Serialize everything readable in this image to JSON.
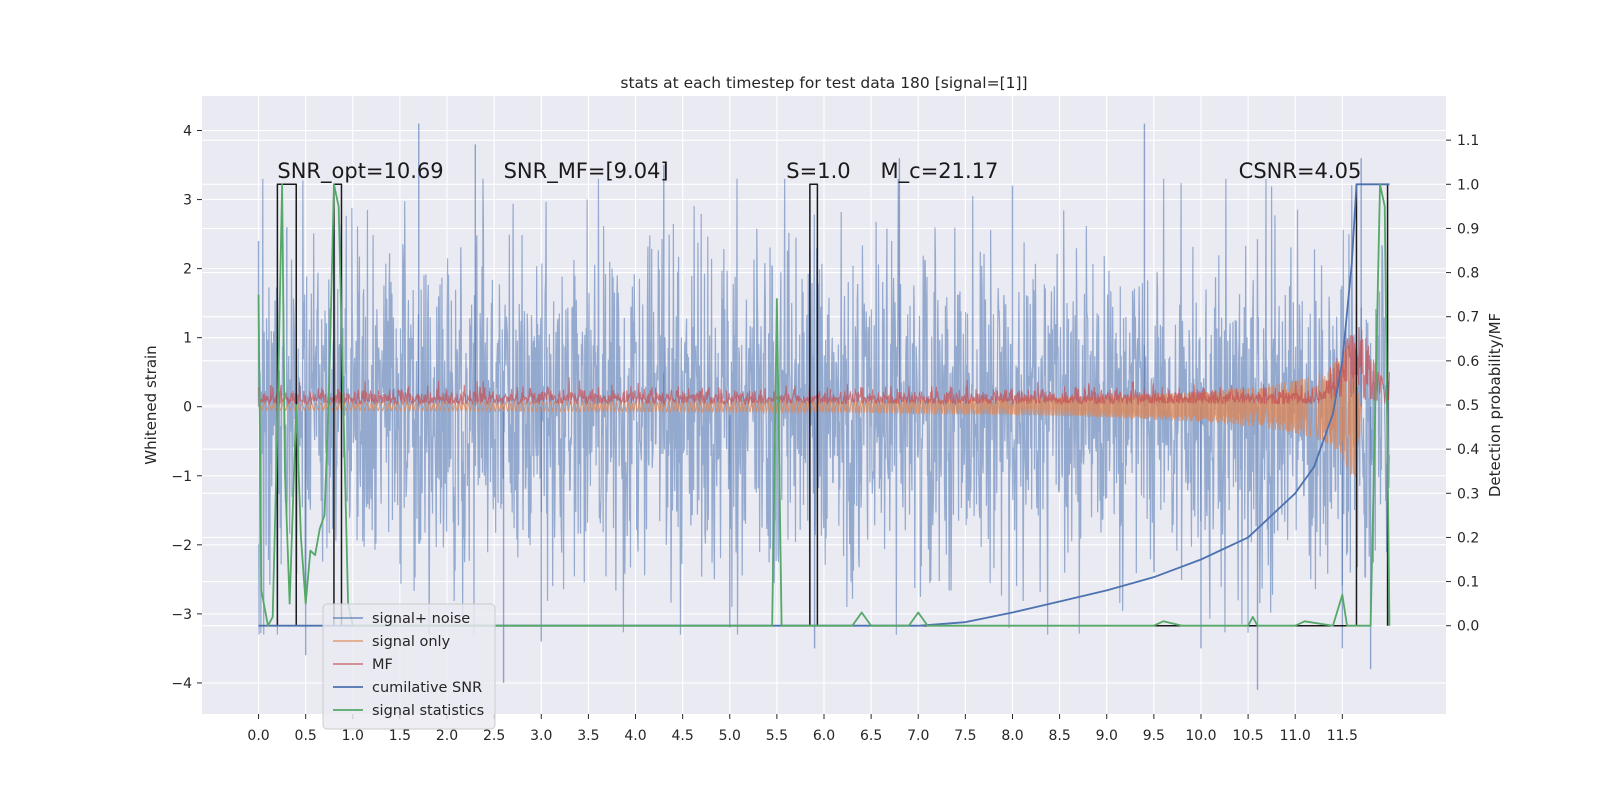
{
  "chart_data": {
    "type": "line",
    "title": "stats at each timestep for test data 180 [signal=[1]]",
    "xlabel": "",
    "ylabel": "Whitened strain",
    "ylabel_right": "Detection probability/MF",
    "xlim": [
      -0.6,
      12.6
    ],
    "ylim": [
      -4.45,
      4.5
    ],
    "ylim_right": [
      -0.2,
      1.2
    ],
    "x_ticks": [
      0.0,
      0.5,
      1.0,
      1.5,
      2.0,
      2.5,
      3.0,
      3.5,
      4.0,
      4.5,
      5.0,
      5.5,
      6.0,
      6.5,
      7.0,
      7.5,
      8.0,
      8.5,
      9.0,
      9.5,
      10.0,
      10.5,
      11.0,
      11.5
    ],
    "x_tick_labels": [
      "0.0",
      "0.5",
      "1.0",
      "1.5",
      "2.0",
      "2.5",
      "3.0",
      "3.5",
      "4.0",
      "4.5",
      "5.0",
      "5.5",
      "6.0",
      "6.5",
      "7.0",
      "7.5",
      "8.0",
      "8.5",
      "9.0",
      "9.5",
      "10.0",
      "10.5",
      "11.0",
      "11.5"
    ],
    "y_ticks": [
      -4,
      -3,
      -2,
      -1,
      0,
      1,
      2,
      3,
      4
    ],
    "y_tick_labels": [
      "−4",
      "−3",
      "−2",
      "−1",
      "0",
      "1",
      "2",
      "3",
      "4"
    ],
    "y_right_ticks": [
      0.0,
      0.1,
      0.2,
      0.3,
      0.4,
      0.5,
      0.6,
      0.7,
      0.8,
      0.9,
      1.0,
      1.1
    ],
    "y_right_tick_labels": [
      "0.0",
      "0.1",
      "0.2",
      "0.3",
      "0.4",
      "0.5",
      "0.6",
      "0.7",
      "0.8",
      "0.9",
      "1.0",
      "1.1"
    ],
    "grid": true,
    "legend_position": "bottom-left",
    "annotations": [
      {
        "text": "SNR_opt=10.69",
        "x": 0.2,
        "y": 3.2
      },
      {
        "text": "SNR_MF=[9.04]",
        "x": 2.6,
        "y": 3.2
      },
      {
        "text": "S=1.0",
        "x": 5.6,
        "y": 3.2
      },
      {
        "text": "M_c=21.17",
        "x": 6.6,
        "y": 3.2
      },
      {
        "text": "CSNR=4.05",
        "x": 10.4,
        "y": 3.2
      }
    ],
    "series": [
      {
        "name": "signal+ noise",
        "axis": "left",
        "color": "#4c72b0",
        "style": "noise band",
        "x_range": [
          0.0,
          12.0
        ],
        "typical_envelope": [
          -2.0,
          2.0
        ],
        "peaks": [
          [
            0.0,
            2.4
          ],
          [
            0.3,
            2.6
          ],
          [
            1.7,
            4.1
          ],
          [
            2.3,
            3.8
          ],
          [
            4.3,
            3.5
          ],
          [
            6.8,
            3.6
          ],
          [
            8.0,
            3.2
          ],
          [
            9.4,
            4.1
          ],
          [
            11.7,
            3.6
          ]
        ],
        "troughs": [
          [
            0.5,
            -3.6
          ],
          [
            2.6,
            -4.0
          ],
          [
            3.0,
            -3.4
          ],
          [
            5.0,
            -3.2
          ],
          [
            5.9,
            -3.5
          ],
          [
            10.0,
            -3.5
          ],
          [
            10.6,
            -4.1
          ],
          [
            11.5,
            -3.5
          ],
          [
            11.8,
            -3.8
          ]
        ]
      },
      {
        "name": "signal only",
        "axis": "left",
        "color": "#dd8452",
        "style": "chirp",
        "x": [
          0.0,
          2.0,
          4.0,
          6.0,
          8.0,
          9.0,
          10.0,
          10.5,
          11.0,
          11.3,
          11.5,
          11.6,
          11.65,
          11.7
        ],
        "amplitude": [
          0.05,
          0.06,
          0.07,
          0.08,
          0.12,
          0.16,
          0.22,
          0.28,
          0.38,
          0.5,
          0.75,
          1.05,
          1.2,
          0.0
        ]
      },
      {
        "name": "MF",
        "axis": "left",
        "color": "#c44e52",
        "style": "positive noise band",
        "x_range": [
          0.0,
          12.0
        ],
        "typical_envelope": [
          0.0,
          0.3
        ],
        "peak": [
          11.65,
          1.4
        ]
      },
      {
        "name": "cumilative SNR",
        "axis": "right",
        "color": "#4c72b0",
        "x": [
          0.0,
          7.0,
          7.5,
          8.0,
          8.5,
          9.0,
          9.5,
          10.0,
          10.5,
          11.0,
          11.2,
          11.4,
          11.5,
          11.6,
          11.65,
          11.68,
          12.0
        ],
        "y": [
          0.0,
          0.0,
          0.008,
          0.03,
          0.055,
          0.08,
          0.11,
          0.15,
          0.2,
          0.3,
          0.36,
          0.48,
          0.6,
          0.82,
          1.0,
          1.0,
          1.0
        ]
      },
      {
        "name": "signal statistics",
        "axis": "right",
        "color": "#55a868",
        "x": [
          0.0,
          0.03,
          0.1,
          0.15,
          0.2,
          0.25,
          0.28,
          0.33,
          0.4,
          0.45,
          0.5,
          0.55,
          0.6,
          0.65,
          0.7,
          0.75,
          0.8,
          0.85,
          0.9,
          0.95,
          1.0,
          5.45,
          5.5,
          5.55,
          5.6,
          6.3,
          6.4,
          6.5,
          6.9,
          7.0,
          7.1,
          9.5,
          9.6,
          9.8,
          10.5,
          10.55,
          10.6,
          11.0,
          11.1,
          11.4,
          11.5,
          11.55,
          11.6,
          11.8,
          11.85,
          11.9,
          11.95,
          12.0
        ],
        "y": [
          0.75,
          0.08,
          0.0,
          0.02,
          0.45,
          1.0,
          0.35,
          0.05,
          0.5,
          0.2,
          0.05,
          0.17,
          0.16,
          0.22,
          0.25,
          0.55,
          1.0,
          0.95,
          0.5,
          0.05,
          0.0,
          0.0,
          0.74,
          0.0,
          0.0,
          0.0,
          0.03,
          0.0,
          0.0,
          0.03,
          0.0,
          0.0,
          0.01,
          0.0,
          0.0,
          0.02,
          0.0,
          0.0,
          0.01,
          0.0,
          0.07,
          0.0,
          0.0,
          0.0,
          0.5,
          1.0,
          0.95,
          0.0
        ]
      },
      {
        "name": "detection window",
        "axis": "right",
        "color": "#1a1a1a",
        "legend": false,
        "x": [
          0.0,
          0.2,
          0.2,
          0.4,
          0.4,
          0.8,
          0.8,
          0.88,
          0.88,
          5.85,
          5.85,
          5.93,
          5.93,
          11.65,
          11.65,
          11.98,
          11.98
        ],
        "y": [
          0.0,
          0.0,
          1.0,
          1.0,
          0.0,
          0.0,
          1.0,
          1.0,
          0.0,
          0.0,
          1.0,
          1.0,
          0.0,
          0.0,
          1.0,
          1.0,
          0.0
        ]
      }
    ]
  }
}
